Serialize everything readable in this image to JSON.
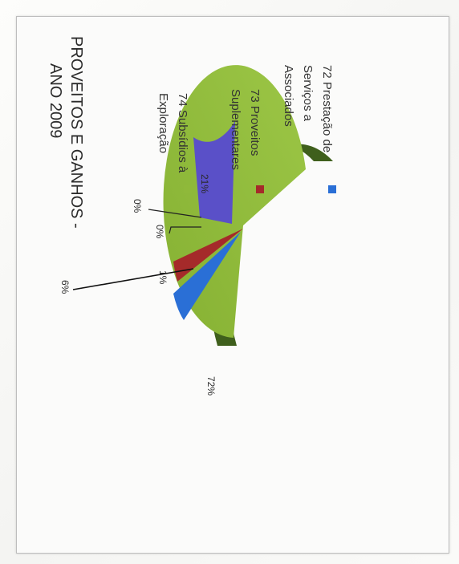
{
  "chart_data": {
    "type": "pie",
    "title_lines": [
      "PROVEITOS E GANHOS -",
      "ANO 2009"
    ],
    "slices": [
      {
        "label_lines": [
          "72 Prestação de",
          "Serviços a",
          "Associados"
        ],
        "value": 6,
        "display": "6%",
        "color": "#2a6fd6"
      },
      {
        "label_lines": [
          "73 Proveitos",
          "Suplementares"
        ],
        "value": 1,
        "display": "1%",
        "color": "#a52a2a"
      },
      {
        "label_lines": [
          "74 Subsídios à",
          "Exploração"
        ],
        "value": 72,
        "display": "72%",
        "color": "#8fb93a"
      },
      {
        "label_lines": [],
        "value": 21,
        "display": "21%",
        "color": "#5a50c8"
      },
      {
        "label_lines": [],
        "value": 0,
        "display": "0%",
        "color": "#c0c0c0"
      },
      {
        "label_lines": [],
        "value": 0,
        "display": "0%",
        "color": "#c0c0c0"
      }
    ],
    "legend_placement": "right",
    "orientation": "rotated-90-clockwise"
  }
}
